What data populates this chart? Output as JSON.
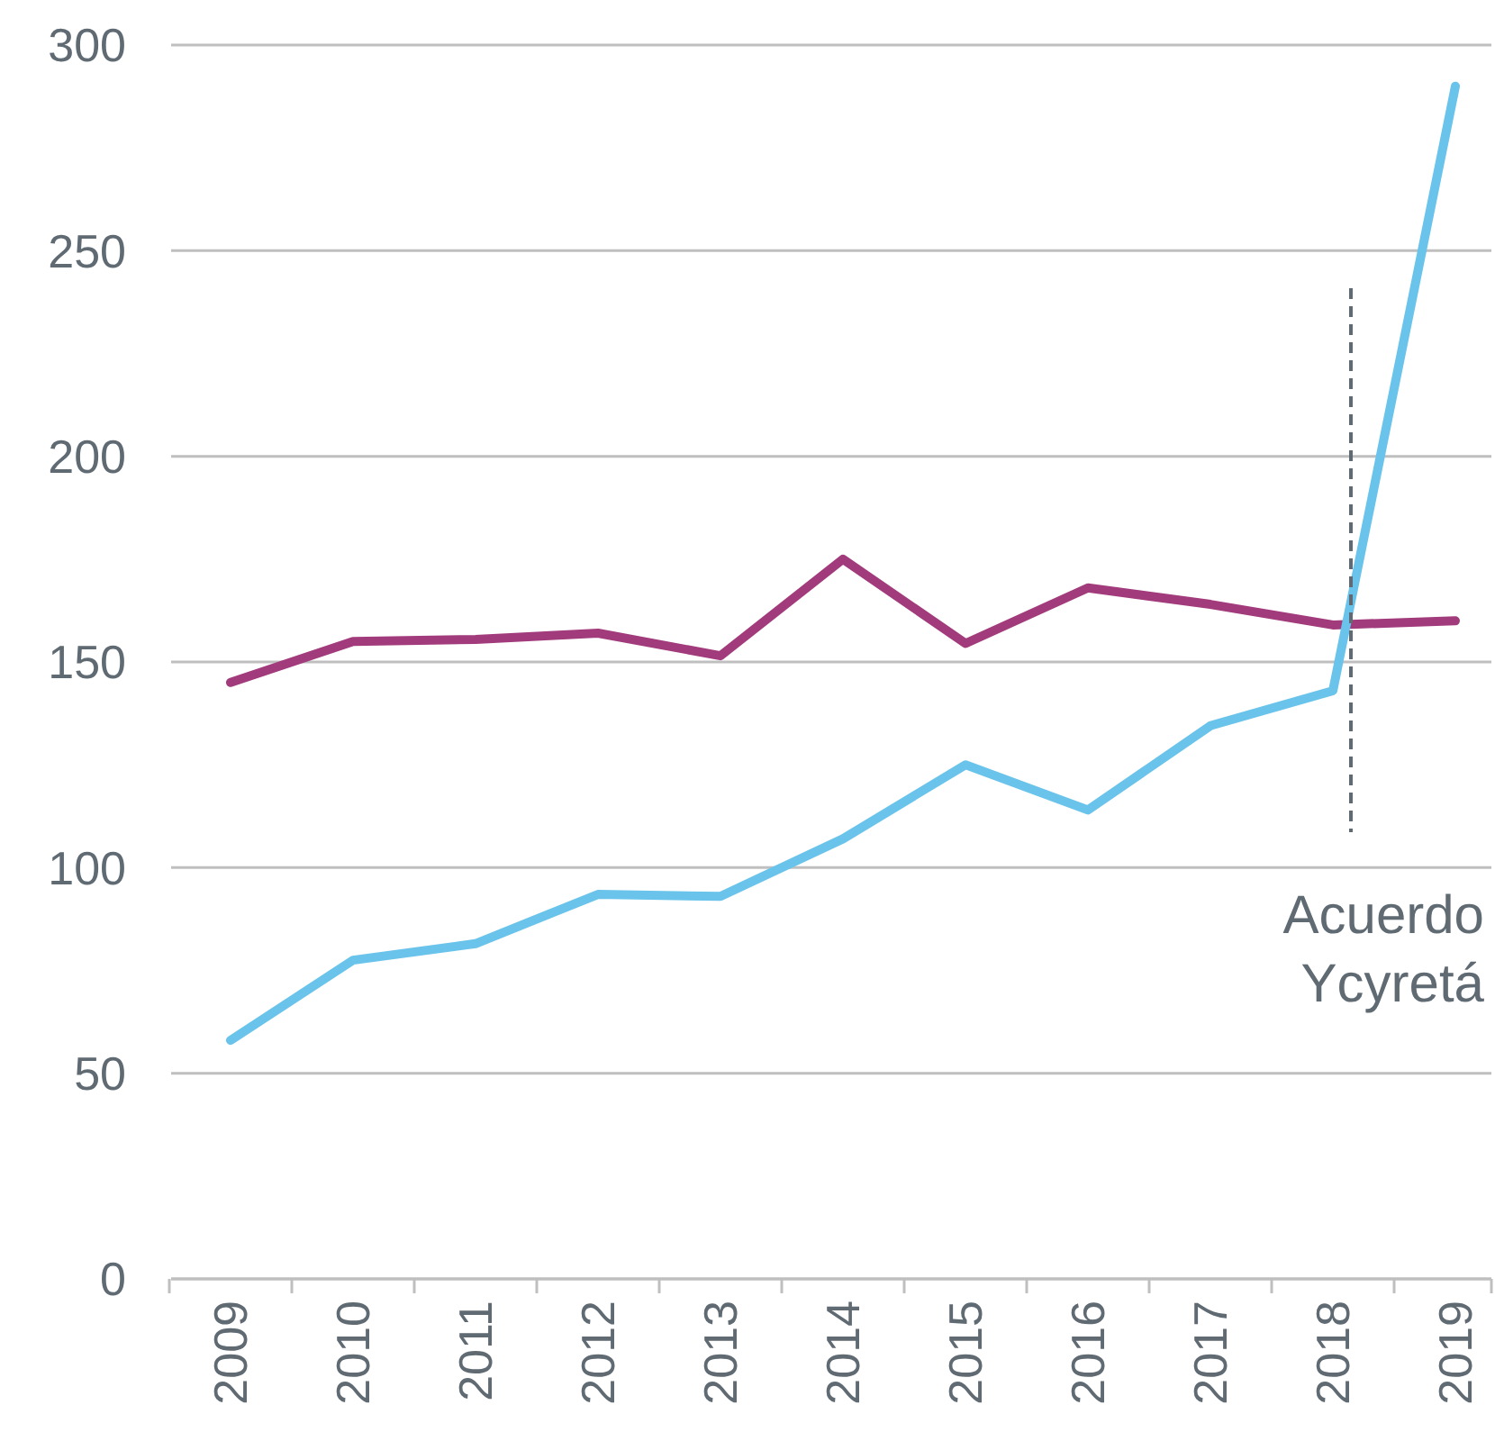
{
  "chart_data": {
    "type": "line",
    "categories": [
      "2009",
      "2010",
      "2011",
      "2012",
      "2013",
      "2014",
      "2015",
      "2016",
      "2017",
      "2018",
      "2019"
    ],
    "series": [
      {
        "color": "#a23b7c",
        "values": [
          145,
          155,
          155.5,
          157,
          151.5,
          175,
          154.5,
          168,
          164,
          159,
          160
        ]
      },
      {
        "color": "#6ac3ea",
        "values": [
          58,
          77.5,
          81.5,
          93.5,
          93,
          107,
          125,
          114,
          134.5,
          143,
          290
        ]
      }
    ],
    "ylim": [
      0,
      300
    ],
    "yticks": [
      0,
      50,
      100,
      150,
      200,
      250,
      300
    ],
    "grid": "y",
    "line_style": "solid",
    "ref_lines": [
      {
        "axis": "x",
        "value": "2018",
        "label": "Acuerdo Ycyretá",
        "color": "#5f6a72",
        "line_style": "dashed"
      }
    ]
  }
}
